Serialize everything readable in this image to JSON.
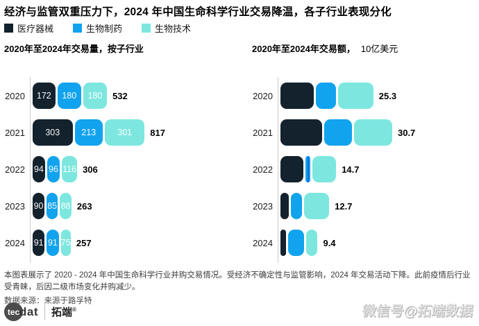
{
  "title": "经济与监管双重压力下，2024 年中国生命科学行业交易降温，各子行业表现分化",
  "palette": {
    "医疗器械": "#14222e",
    "生物制药": "#12a3ee",
    "生物技术": "#7de7df",
    "stripe_accent": "#1565d8",
    "axis": "#cccccc"
  },
  "legend": [
    {
      "label": "医疗器械"
    },
    {
      "label": "生物制药"
    },
    {
      "label": "生物技术"
    }
  ],
  "chart_data": [
    {
      "type": "bar",
      "orientation": "horizontal",
      "subtitle_bold": "2020年至2024年交易量，按子行业",
      "subtitle_normal": "",
      "categories": [
        "2020",
        "2021",
        "2022",
        "2023",
        "2024"
      ],
      "series": [
        {
          "name": "医疗器械",
          "values": [
            172,
            303,
            94,
            90,
            91
          ]
        },
        {
          "name": "生物制药",
          "values": [
            180,
            213,
            96,
            85,
            91
          ]
        },
        {
          "name": "生物技术",
          "values": [
            180,
            301,
            116,
            88,
            75
          ]
        }
      ],
      "totals": [
        532,
        817,
        306,
        263,
        257
      ],
      "segment_labels": true,
      "grid": false,
      "legend_position": "top",
      "xlim": [
        0,
        850
      ]
    },
    {
      "type": "bar",
      "orientation": "horizontal",
      "subtitle_bold": "2020年至2024年交易额，",
      "subtitle_normal": "10亿美元",
      "categories": [
        "2020",
        "2021",
        "2022",
        "2023",
        "2024"
      ],
      "series": [
        {
          "name": "医疗器械",
          "values": [
            9.4,
            11.8,
            6.5,
            2.3,
            1.5
          ]
        },
        {
          "name": "生物制药",
          "values": [
            5.8,
            8.1,
            1.5,
            3.2,
            4.7
          ]
        },
        {
          "name": "生物技术",
          "values": [
            10.1,
            10.8,
            6.7,
            7.2,
            3.2
          ]
        }
      ],
      "totals": [
        25.3,
        30.7,
        14.7,
        12.7,
        9.4
      ],
      "segment_labels": false,
      "grid": false,
      "legend_position": "top",
      "stripes": [
        [
          2,
          1
        ]
      ],
      "xlim": [
        0,
        32
      ]
    }
  ],
  "footer": {
    "note": "本图表展示了 2020 - 2024 年中国生命科学行业并购交易情况。受经济不确定性与监管影响，2024 年交易活动下降。此前疫情后行业受青睐，后因二级市场变化并购减少。",
    "source": "数据来源：来源于路孚特"
  },
  "logo": {
    "circle": "tec",
    "suffix": "dat",
    "brand": "拓端",
    "reg": "®"
  },
  "watermark": "微信号@拓端数据"
}
